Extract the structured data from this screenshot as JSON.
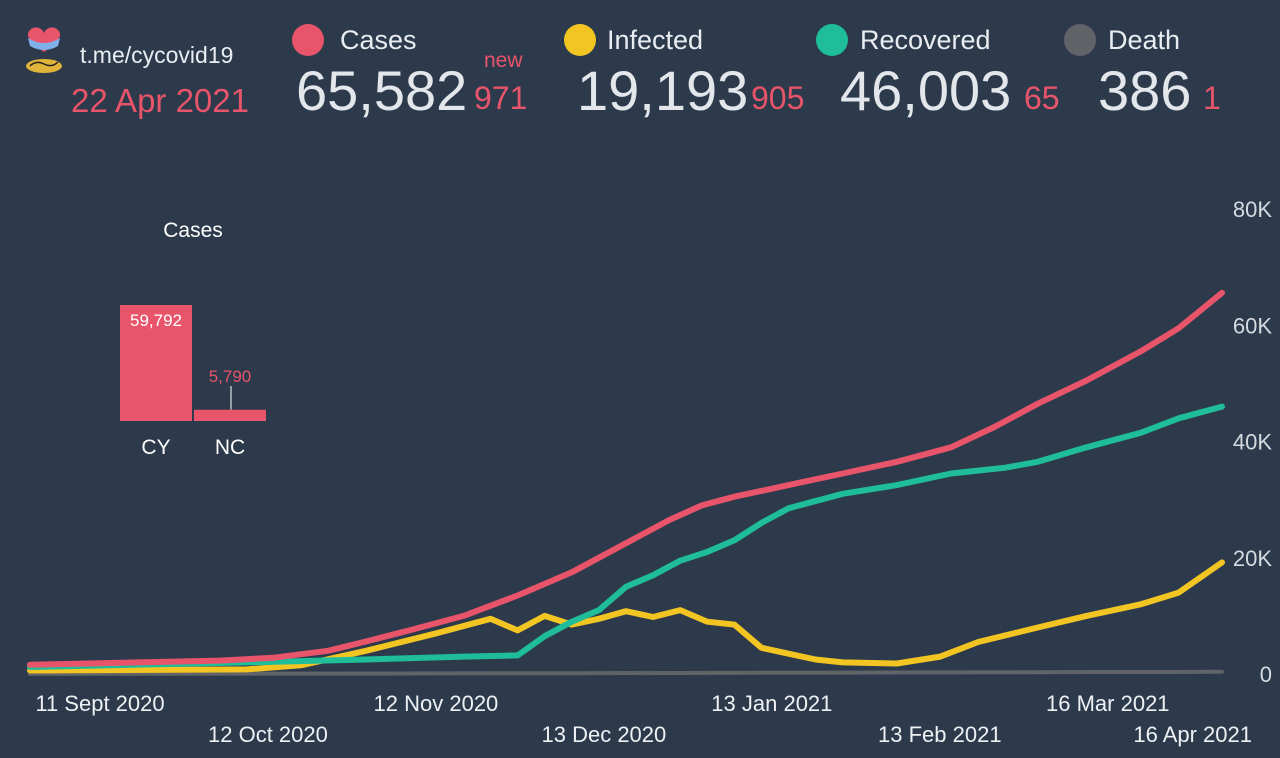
{
  "header": {
    "channel": "t.me/cycovid19",
    "date": "22 Apr 2021",
    "new_label": "new"
  },
  "stats": [
    {
      "label": "Cases",
      "color": "#e8546a",
      "value": "65,582",
      "delta": "971"
    },
    {
      "label": "Infected",
      "color": "#f2c523",
      "value": "19,193",
      "delta": "905"
    },
    {
      "label": "Recovered",
      "color": "#1fbd9a",
      "value": "46,003",
      "delta": "65"
    },
    {
      "label": "Death",
      "color": "#606469",
      "value": "386",
      "delta": "1"
    }
  ],
  "inset": {
    "title": "Cases",
    "bars": [
      {
        "label": "CY",
        "value": 59792,
        "text": "59,792"
      },
      {
        "label": "NC",
        "value": 5790,
        "text": "5,790"
      }
    ]
  },
  "chart_data": {
    "type": "line",
    "y_ticks": [
      "0",
      "20K",
      "40K",
      "60K",
      "80K"
    ],
    "ylim": [
      0,
      80000
    ],
    "x_ticks": [
      "11 Sept 2020",
      "12 Oct 2020",
      "12 Nov 2020",
      "13 Dec 2020",
      "13 Jan 2021",
      "13 Feb 2021",
      "16 Mar 2021",
      "16 Apr 2021"
    ],
    "x_tick_days": [
      0,
      31,
      62,
      93,
      124,
      155,
      186,
      217
    ],
    "series": [
      {
        "name": "Cases",
        "color": "#e8546a",
        "x": [
          0,
          20,
          35,
          45,
          55,
          62,
          70,
          80,
          90,
          100,
          110,
          118,
          124,
          130,
          140,
          150,
          160,
          170,
          178,
          186,
          195,
          205,
          212,
          220
        ],
        "y": [
          1600,
          2000,
          2300,
          2800,
          4000,
          5600,
          7500,
          10000,
          13500,
          17500,
          22500,
          26500,
          29000,
          30500,
          32500,
          34500,
          36500,
          39000,
          42500,
          46500,
          50500,
          55500,
          59500,
          65582
        ]
      },
      {
        "name": "Recovered",
        "color": "#1fbd9a",
        "x": [
          0,
          30,
          40,
          62,
          80,
          90,
          95,
          100,
          105,
          110,
          115,
          120,
          125,
          130,
          135,
          140,
          150,
          160,
          170,
          180,
          186,
          195,
          205,
          212,
          220
        ],
        "y": [
          1200,
          1800,
          2000,
          2500,
          3000,
          3200,
          6500,
          9000,
          11000,
          15000,
          17000,
          19500,
          21000,
          23000,
          26000,
          28500,
          31000,
          32500,
          34500,
          35500,
          36500,
          39000,
          41500,
          44000,
          46003
        ]
      },
      {
        "name": "Infected",
        "color": "#f2c523",
        "x": [
          0,
          40,
          50,
          62,
          75,
          85,
          90,
          95,
          100,
          105,
          110,
          115,
          120,
          125,
          130,
          135,
          140,
          145,
          150,
          160,
          168,
          175,
          186,
          195,
          205,
          212,
          220
        ],
        "y": [
          600,
          800,
          1500,
          4000,
          7000,
          9500,
          7500,
          10000,
          8500,
          9500,
          10800,
          9800,
          11000,
          9000,
          8500,
          4500,
          3500,
          2500,
          2000,
          1800,
          3000,
          5500,
          8000,
          10000,
          12000,
          14000,
          19193
        ]
      },
      {
        "name": "Death",
        "color": "#606469",
        "x": [
          0,
          100,
          220
        ],
        "y": [
          20,
          130,
          386
        ]
      }
    ]
  }
}
